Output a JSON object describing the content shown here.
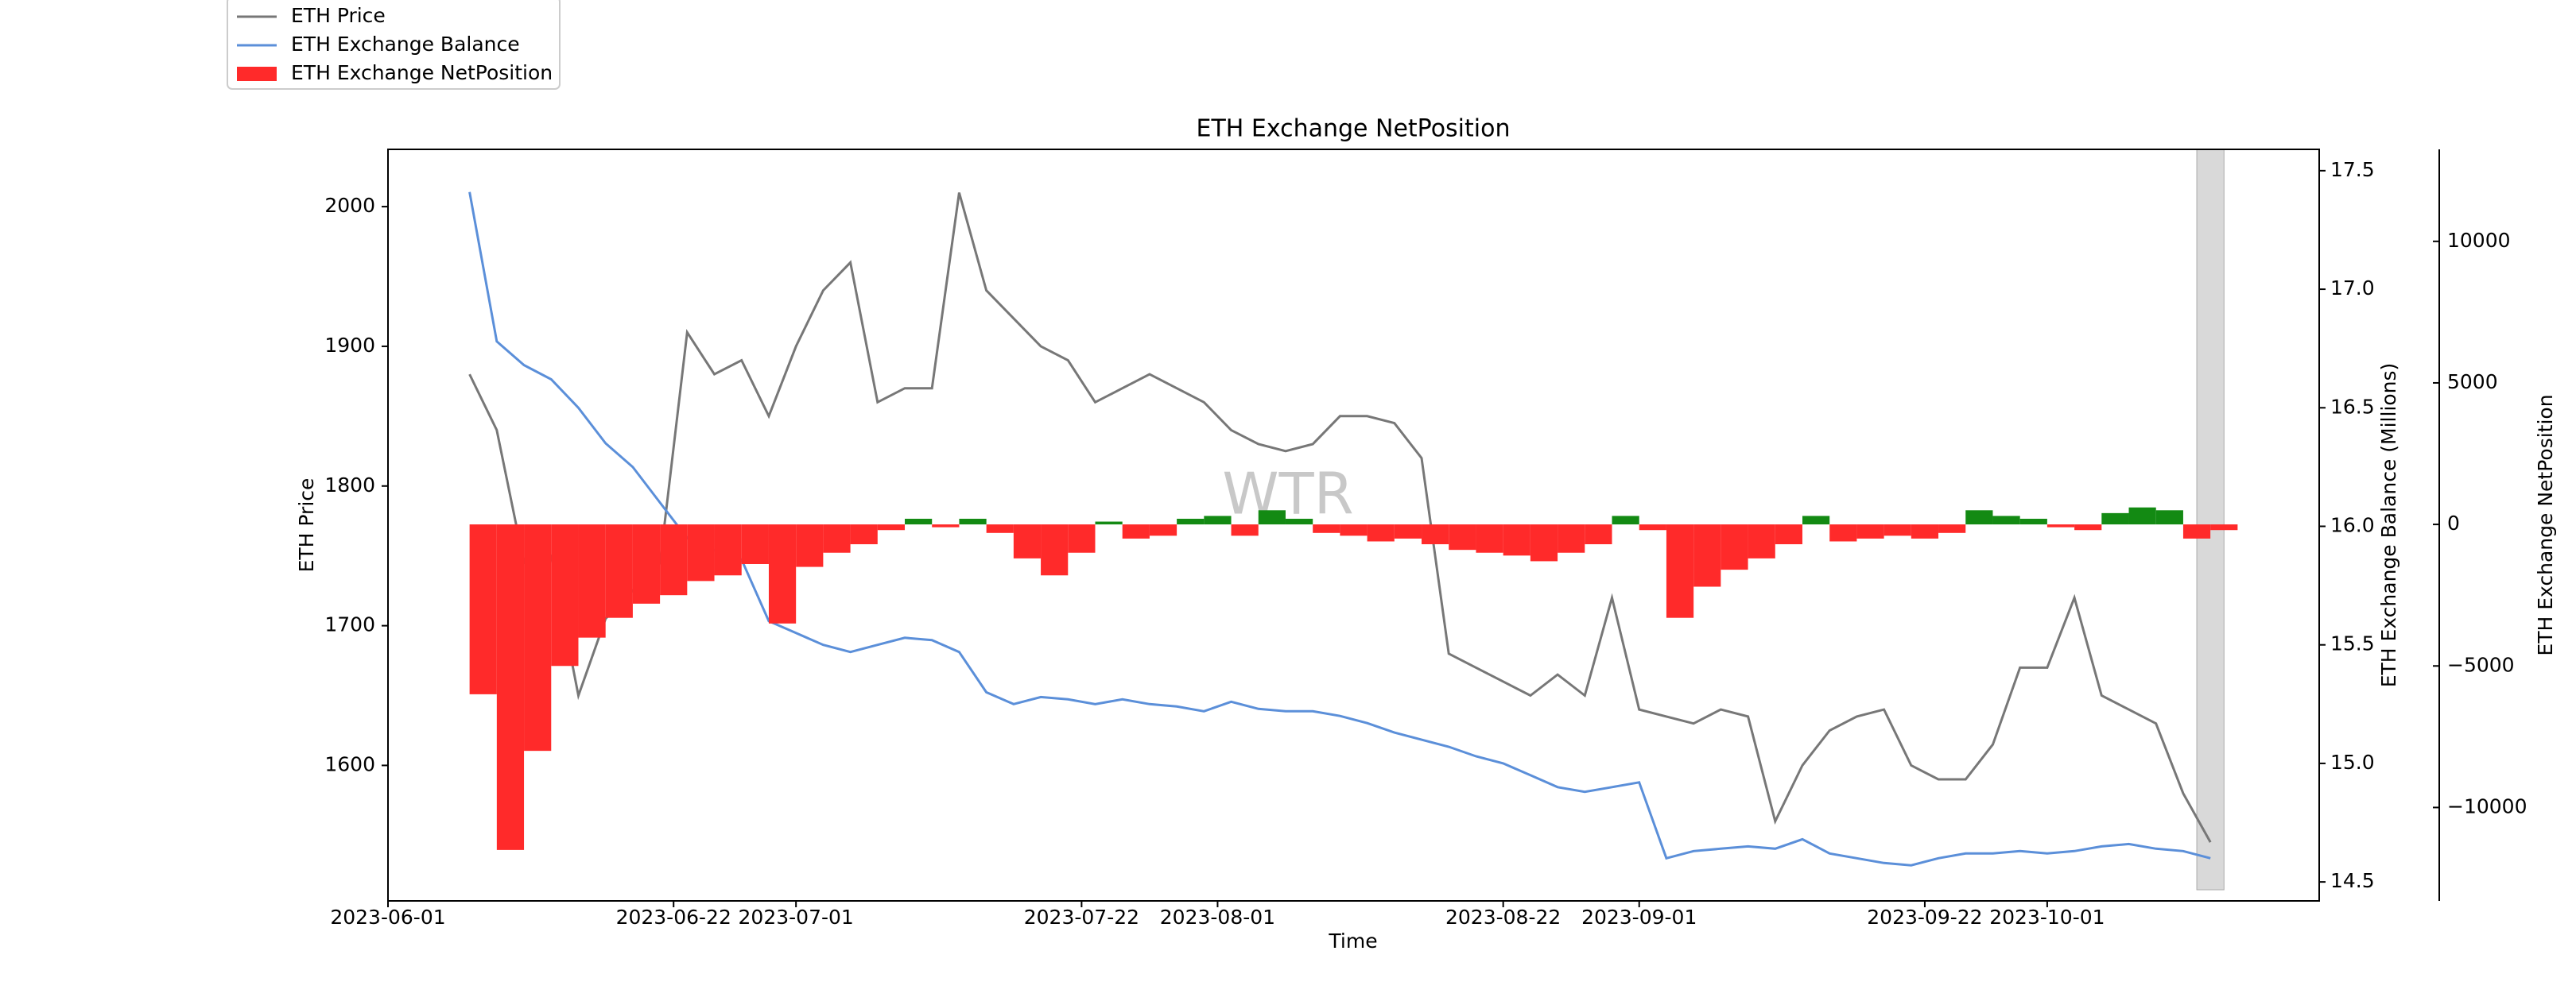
{
  "chart_data": {
    "type": "line",
    "title": "ETH Exchange NetPosition",
    "xlabel": "Time",
    "ylabel": "ETH Price",
    "y2label": "ETH Exchange Balance (Millions)",
    "y3label": "ETH Exchange NetPosition",
    "watermark": "WTR",
    "legend": "upper left",
    "x": [
      "2023-06-07",
      "2023-06-09",
      "2023-06-11",
      "2023-06-13",
      "2023-06-15",
      "2023-06-17",
      "2023-06-19",
      "2023-06-21",
      "2023-06-23",
      "2023-06-25",
      "2023-06-27",
      "2023-06-29",
      "2023-07-01",
      "2023-07-03",
      "2023-07-05",
      "2023-07-07",
      "2023-07-09",
      "2023-07-11",
      "2023-07-13",
      "2023-07-15",
      "2023-07-17",
      "2023-07-19",
      "2023-07-21",
      "2023-07-23",
      "2023-07-25",
      "2023-07-27",
      "2023-07-29",
      "2023-07-31",
      "2023-08-02",
      "2023-08-04",
      "2023-08-06",
      "2023-08-08",
      "2023-08-10",
      "2023-08-12",
      "2023-08-14",
      "2023-08-16",
      "2023-08-18",
      "2023-08-20",
      "2023-08-22",
      "2023-08-24",
      "2023-08-26",
      "2023-08-28",
      "2023-08-30",
      "2023-09-01",
      "2023-09-03",
      "2023-09-05",
      "2023-09-07",
      "2023-09-09",
      "2023-09-11",
      "2023-09-13",
      "2023-09-15",
      "2023-09-17",
      "2023-09-19",
      "2023-09-21",
      "2023-09-23",
      "2023-09-25",
      "2023-09-27",
      "2023-09-29",
      "2023-10-01",
      "2023-10-03",
      "2023-10-05",
      "2023-10-07",
      "2023-10-09",
      "2023-10-11",
      "2023-10-13"
    ],
    "series": [
      {
        "name": "ETH Price",
        "type": "line",
        "axis": "y",
        "color": "#777777",
        "values": [
          1880,
          1840,
          1745,
          1750,
          1650,
          1705,
          1725,
          1745,
          1910,
          1880,
          1890,
          1850,
          1900,
          1940,
          1960,
          1860,
          1870,
          1870,
          2010,
          1940,
          1920,
          1900,
          1890,
          1860,
          1870,
          1880,
          1870,
          1860,
          1840,
          1830,
          1825,
          1830,
          1850,
          1850,
          1845,
          1820,
          1680,
          1670,
          1660,
          1650,
          1665,
          1650,
          1720,
          1640,
          1635,
          1630,
          1640,
          1635,
          1560,
          1600,
          1625,
          1635,
          1640,
          1600,
          1590,
          1590,
          1615,
          1670,
          1670,
          1720,
          1650,
          1640,
          1630,
          1580,
          1545
        ]
      },
      {
        "name": "ETH Exchange Balance",
        "type": "line",
        "axis": "y2",
        "color": "#5b8fd9",
        "values": [
          17.41,
          16.78,
          16.68,
          16.62,
          16.5,
          16.35,
          16.25,
          16.1,
          15.95,
          15.9,
          15.86,
          15.6,
          15.55,
          15.5,
          15.47,
          15.5,
          15.53,
          15.52,
          15.47,
          15.3,
          15.25,
          15.28,
          15.27,
          15.25,
          15.27,
          15.25,
          15.24,
          15.22,
          15.26,
          15.23,
          15.22,
          15.22,
          15.2,
          15.17,
          15.13,
          15.1,
          15.07,
          15.03,
          15.0,
          14.95,
          14.9,
          14.88,
          14.9,
          14.92,
          14.6,
          14.63,
          14.64,
          14.65,
          14.64,
          14.68,
          14.62,
          14.6,
          14.58,
          14.57,
          14.6,
          14.62,
          14.62,
          14.63,
          14.62,
          14.63,
          14.65,
          14.66,
          14.64,
          14.63,
          14.6
        ]
      },
      {
        "name": "ETH Exchange NetPosition",
        "type": "bar",
        "axis": "y3",
        "color": "#ff2a2a",
        "positive_color": "#138a13",
        "values": [
          -6000,
          -11500,
          -8000,
          -5000,
          -4000,
          -3300,
          -2800,
          -2500,
          -2000,
          -1800,
          -1400,
          -3500,
          -1500,
          -1000,
          -700,
          -200,
          200,
          -100,
          200,
          -300,
          -1200,
          -1800,
          -1000,
          100,
          -500,
          -400,
          200,
          300,
          -400,
          500,
          200,
          -300,
          -400,
          -600,
          -500,
          -700,
          -900,
          -1000,
          -1100,
          -1300,
          -1000,
          -700,
          300,
          -200,
          -3300,
          -2200,
          -1600,
          -1200,
          -700,
          300,
          -600,
          -500,
          -400,
          -500,
          -300,
          500,
          300,
          200,
          -100,
          -200,
          400,
          600,
          500,
          -500,
          -200
        ]
      }
    ],
    "shaded_range": [
      "2023-10-12",
      "2023-10-14"
    ],
    "xlim": [
      "2023-06-01",
      "2023-10-21"
    ],
    "xticks": [
      "2023-06-01",
      "2023-06-22",
      "2023-07-01",
      "2023-07-22",
      "2023-08-01",
      "2023-08-22",
      "2023-09-01",
      "2023-09-22",
      "2023-10-01"
    ],
    "ylim": [
      1503,
      2041
    ],
    "yticks": [
      1600,
      1700,
      1800,
      1900,
      2000
    ],
    "y2lim": [
      14.42,
      17.59
    ],
    "y2ticks": [
      14.5,
      {
        "value": 15,
        "label": "15.0"
      },
      15.5,
      {
        "value": 16,
        "label": "16.0"
      },
      16.5,
      {
        "value": 17,
        "label": "17.0"
      },
      17.5
    ],
    "y3lim": [
      -13300,
      13250
    ],
    "y3ticks": [
      {
        "value": -10000,
        "label": "−10000"
      },
      {
        "value": -5000,
        "label": "−5000"
      },
      0,
      5000,
      10000
    ]
  }
}
